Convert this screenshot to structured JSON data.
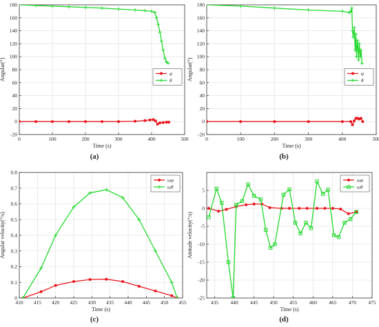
{
  "colors": {
    "red": "#e8141b",
    "green": "#21d82b",
    "axis": "#333333",
    "grid": "#dcdcdc"
  },
  "chart_data": [
    {
      "type": "line",
      "panel_label": "(a)",
      "xlabel": "Time (s)",
      "ylabel": "Angular(°)",
      "xlim": [
        0,
        500
      ],
      "ylim": [
        -20,
        180
      ],
      "xticks": [
        "0",
        "100",
        "200",
        "300",
        "400",
        "500"
      ],
      "yticks": [
        "-20",
        "0",
        "20",
        "40",
        "60",
        "80",
        "100",
        "120",
        "140",
        "160",
        "180"
      ],
      "legend": {
        "placement": "right",
        "entries": [
          "φ",
          "θ"
        ]
      },
      "series": [
        {
          "name": "φ",
          "color": "red",
          "marker": "dot",
          "x": [
            0,
            50,
            100,
            150,
            200,
            250,
            300,
            350,
            380,
            395,
            405,
            412,
            418,
            425,
            435,
            445,
            452
          ],
          "y": [
            0,
            0,
            0,
            0,
            0,
            0,
            0,
            0.5,
            1.5,
            2.5,
            3,
            1,
            -4,
            -2,
            -1.5,
            -1,
            -1
          ]
        },
        {
          "name": "θ",
          "color": "green",
          "marker": "cross",
          "x": [
            0,
            50,
            100,
            150,
            200,
            250,
            300,
            350,
            380,
            400,
            410,
            415,
            420,
            425,
            430,
            435,
            440,
            445,
            450
          ],
          "y": [
            180,
            179,
            178,
            177,
            176,
            175,
            173.5,
            172,
            171,
            170,
            168,
            160,
            150,
            138,
            124,
            110,
            98,
            92,
            90
          ]
        }
      ]
    },
    {
      "type": "line",
      "panel_label": "(b)",
      "xlabel": "Time (s)",
      "ylabel": "Angular(°)",
      "xlim": [
        0,
        500
      ],
      "ylim": [
        -20,
        180
      ],
      "xticks": [
        "0",
        "100",
        "200",
        "300",
        "400",
        "500"
      ],
      "yticks": [
        "-20",
        "0",
        "20",
        "40",
        "60",
        "80",
        "100",
        "120",
        "140",
        "160",
        "180"
      ],
      "legend": {
        "placement": "right",
        "entries": [
          "φ",
          "θ"
        ]
      },
      "series": [
        {
          "name": "φ",
          "color": "red",
          "marker": "dot",
          "x": [
            0,
            100,
            200,
            300,
            400,
            425,
            430,
            435,
            440,
            445,
            450,
            455,
            460
          ],
          "y": [
            0,
            0,
            0,
            0,
            0,
            0,
            -5,
            1,
            5,
            5,
            4,
            5,
            0
          ]
        },
        {
          "name": "θ",
          "color": "green",
          "marker": "cross",
          "x": [
            0,
            100,
            200,
            300,
            400,
            420,
            425,
            428,
            430,
            432,
            435,
            438,
            440,
            442,
            445,
            448,
            450,
            453,
            455,
            458
          ],
          "y": [
            180,
            178,
            175,
            172,
            170,
            168,
            170,
            175,
            140,
            130,
            145,
            110,
            135,
            100,
            125,
            95,
            120,
            100,
            110,
            90
          ]
        }
      ]
    },
    {
      "type": "line",
      "panel_label": "(c)",
      "xlabel": "Time (s)",
      "ylabel": "Angular velocity(°/s)",
      "xlim": [
        410,
        455
      ],
      "ylim": [
        0,
        0.8
      ],
      "xticks": [
        "410",
        "415",
        "420",
        "425",
        "430",
        "435",
        "440",
        "445",
        "450",
        "455"
      ],
      "yticks": [
        "0",
        "0.1",
        "0.2",
        "0.3",
        "0.4",
        "0.5",
        "0.6",
        "0.7",
        "0.8"
      ],
      "legend": {
        "placement": "top-right",
        "entries": [
          "ωφ",
          "ωθ"
        ]
      },
      "series": [
        {
          "name": "ωφ",
          "color": "red",
          "marker": "dot",
          "x": [
            411,
            416,
            420,
            425,
            429.5,
            434,
            438.5,
            443,
            447.5,
            452,
            453.5
          ],
          "y": [
            0.0,
            0.04,
            0.08,
            0.105,
            0.118,
            0.12,
            0.105,
            0.075,
            0.045,
            0.015,
            0.0
          ]
        },
        {
          "name": "ωθ",
          "color": "green",
          "marker": "cross",
          "x": [
            411,
            416,
            420,
            425,
            429.5,
            434,
            438.5,
            443,
            447.5,
            452,
            453.5
          ],
          "y": [
            0.0,
            0.19,
            0.4,
            0.58,
            0.67,
            0.69,
            0.64,
            0.5,
            0.3,
            0.1,
            0.0
          ]
        }
      ]
    },
    {
      "type": "line",
      "panel_label": "(d)",
      "xlabel": "Time (s)",
      "ylabel": "Attitude velocity(°/s)",
      "xlim": [
        433,
        475
      ],
      "ylim": [
        -25,
        10
      ],
      "xticks": [
        "435",
        "440",
        "445",
        "450",
        "455",
        "460",
        "465",
        "470",
        "475"
      ],
      "yticks": [
        "-25",
        "-20",
        "-15",
        "-10",
        "-5",
        "0",
        "5"
      ],
      "legend": {
        "placement": "top-right",
        "entries": [
          "ωφ",
          "ωθ"
        ]
      },
      "series": [
        {
          "name": "ωφ",
          "color": "red",
          "marker": "dot",
          "x": [
            433.5,
            436,
            438,
            440.5,
            443,
            445,
            447,
            449,
            452,
            454,
            456.5,
            458.5,
            461,
            463,
            465,
            467,
            469,
            471
          ],
          "y": [
            0,
            -0.8,
            -0.3,
            0.5,
            1,
            1.2,
            1.2,
            0.2,
            0,
            0,
            0,
            0,
            0,
            0,
            0,
            -0.2,
            -1.5,
            -1
          ]
        },
        {
          "name": "ωθ",
          "color": "green",
          "marker": "square",
          "x": [
            433.5,
            435.5,
            436.8,
            438.5,
            439.7,
            440.5,
            442,
            443.5,
            445,
            446.7,
            448,
            449.2,
            450.3,
            452.5,
            454,
            455.5,
            456.8,
            458.2,
            459.5,
            461,
            462.5,
            463.8,
            465.3,
            466.5,
            468,
            469.5,
            471
          ],
          "y": [
            -2.5,
            5.5,
            1.5,
            -15,
            -25,
            1,
            2,
            6.7,
            3.5,
            2.5,
            -6,
            -11,
            -10,
            3.8,
            5.3,
            -4,
            -7,
            -4,
            -5.5,
            7.5,
            4,
            5.2,
            -7.5,
            -8,
            -4,
            -3,
            -1
          ]
        }
      ]
    }
  ]
}
